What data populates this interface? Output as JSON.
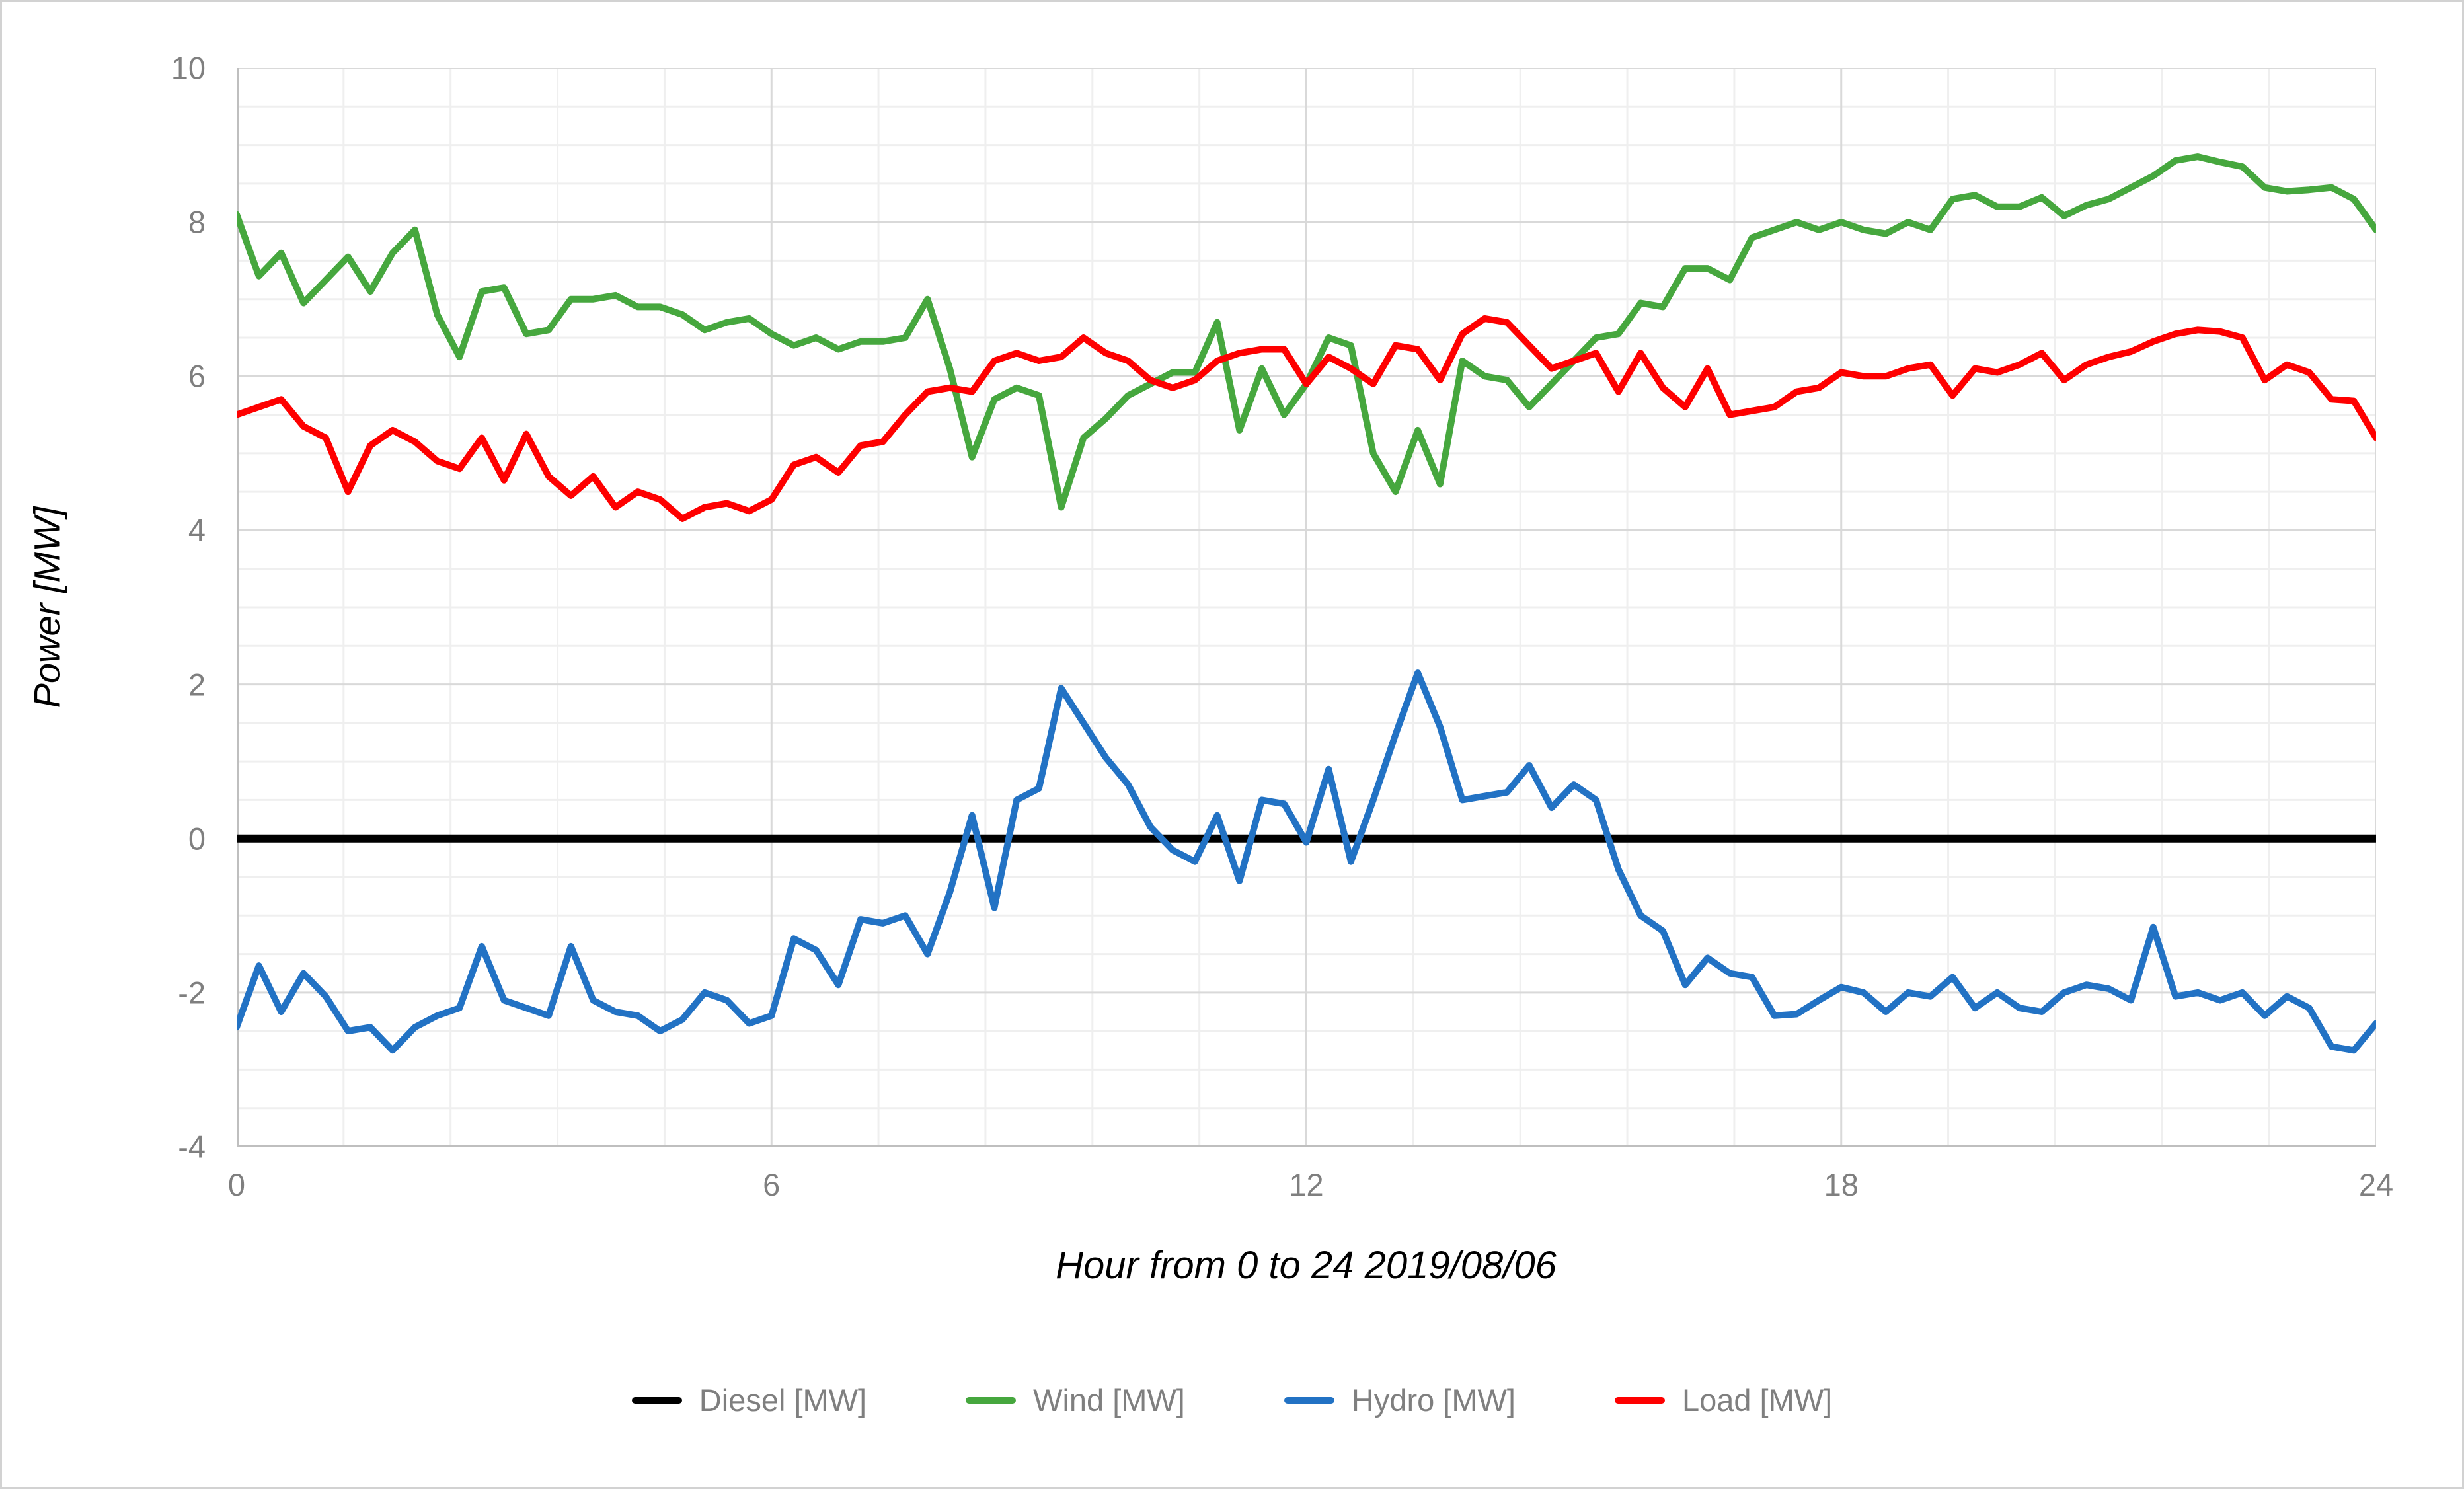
{
  "frame": {
    "background": "#ffffff",
    "border_color": "#d2d2d2"
  },
  "colors": {
    "tick_text": "#7f7f7f",
    "axis_line": "#bfbfbf",
    "grid_major": "#d9d9d9",
    "grid_minor": "#efefef",
    "title_text": "#000000"
  },
  "chart_data": {
    "type": "line",
    "title": "",
    "xlabel": "Hour from 0 to 24 2019/08/06",
    "ylabel": "Power [MW]",
    "xlim": [
      0,
      24
    ],
    "ylim": [
      -4,
      10
    ],
    "x_ticks": [
      0,
      6,
      12,
      18,
      24
    ],
    "y_ticks": [
      10,
      8,
      6,
      4,
      2,
      0,
      -2,
      -4
    ],
    "x_major_step": 6,
    "x_minor_step": 1.2,
    "y_major_step": 2,
    "y_minor_step": 0.5,
    "grid": true,
    "legend_position": "bottom",
    "x_start": 0,
    "x_step": 0.25,
    "series": [
      {
        "name": "Diesel [MW]",
        "color": "#000000",
        "width": 12,
        "values": [
          0,
          0,
          0,
          0,
          0,
          0,
          0,
          0,
          0,
          0,
          0,
          0,
          0,
          0,
          0,
          0,
          0,
          0,
          0,
          0,
          0,
          0,
          0,
          0,
          0,
          0,
          0,
          0,
          0,
          0,
          0,
          0,
          0,
          0,
          0,
          0,
          0,
          0,
          0,
          0,
          0,
          0,
          0,
          0,
          0,
          0,
          0,
          0,
          0,
          0,
          0,
          0,
          0,
          0,
          0,
          0,
          0,
          0,
          0,
          0,
          0,
          0,
          0,
          0,
          0,
          0,
          0,
          0,
          0,
          0,
          0,
          0,
          0,
          0,
          0,
          0,
          0,
          0,
          0,
          0,
          0,
          0,
          0,
          0,
          0,
          0,
          0,
          0,
          0,
          0,
          0,
          0,
          0,
          0,
          0,
          0,
          0
        ]
      },
      {
        "name": "Wind [MW]",
        "color": "#46a73e",
        "width": 10,
        "values": [
          8.1,
          7.3,
          7.6,
          6.95,
          7.25,
          7.55,
          7.1,
          7.6,
          7.9,
          6.8,
          6.25,
          7.1,
          7.15,
          6.55,
          6.6,
          7.0,
          7.0,
          7.05,
          6.9,
          6.9,
          6.8,
          6.6,
          6.7,
          6.75,
          6.55,
          6.4,
          6.5,
          6.35,
          6.45,
          6.45,
          6.5,
          7.0,
          6.1,
          4.95,
          5.7,
          5.85,
          5.75,
          4.3,
          5.2,
          5.45,
          5.75,
          5.9,
          6.05,
          6.05,
          6.7,
          5.3,
          6.1,
          5.5,
          5.9,
          6.5,
          6.4,
          5.0,
          4.5,
          5.3,
          4.6,
          6.2,
          6.0,
          5.95,
          5.6,
          5.9,
          6.2,
          6.5,
          6.55,
          6.95,
          6.9,
          7.4,
          7.4,
          7.25,
          7.8,
          7.9,
          8.0,
          7.9,
          8.0,
          7.9,
          7.85,
          8.0,
          7.9,
          8.3,
          8.35,
          8.2,
          8.2,
          8.32,
          8.08,
          8.22,
          8.3,
          8.45,
          8.6,
          8.8,
          8.85,
          8.78,
          8.72,
          8.45,
          8.4,
          8.42,
          8.45,
          8.3,
          7.9
        ]
      },
      {
        "name": "Hydro [MW]",
        "color": "#2272c4",
        "width": 10,
        "values": [
          -2.45,
          -1.65,
          -2.25,
          -1.75,
          -2.05,
          -2.5,
          -2.45,
          -2.75,
          -2.45,
          -2.3,
          -2.2,
          -1.4,
          -2.1,
          -2.2,
          -2.3,
          -1.4,
          -2.1,
          -2.25,
          -2.3,
          -2.5,
          -2.35,
          -2.0,
          -2.1,
          -2.4,
          -2.3,
          -1.3,
          -1.45,
          -1.9,
          -1.05,
          -1.1,
          -1.0,
          -1.5,
          -0.7,
          0.3,
          -0.9,
          0.5,
          0.65,
          1.95,
          1.5,
          1.05,
          0.7,
          0.15,
          -0.15,
          -0.3,
          0.3,
          -0.55,
          0.5,
          0.45,
          -0.05,
          0.9,
          -0.3,
          0.5,
          1.35,
          2.15,
          1.45,
          0.5,
          0.55,
          0.6,
          0.95,
          0.4,
          0.7,
          0.5,
          -0.4,
          -1.0,
          -1.2,
          -1.9,
          -1.55,
          -1.75,
          -1.8,
          -2.3,
          -2.28,
          -2.1,
          -1.93,
          -2.0,
          -2.25,
          -2.0,
          -2.05,
          -1.8,
          -2.2,
          -2.0,
          -2.2,
          -2.25,
          -2.0,
          -1.9,
          -1.95,
          -2.1,
          -1.15,
          -2.05,
          -2.0,
          -2.1,
          -2.0,
          -2.3,
          -2.05,
          -2.2,
          -2.7,
          -2.75,
          -2.4
        ]
      },
      {
        "name": "Load [MW]",
        "color": "#fe0000",
        "width": 10,
        "values": [
          5.5,
          5.6,
          5.7,
          5.35,
          5.2,
          4.5,
          5.1,
          5.3,
          5.15,
          4.9,
          4.8,
          5.2,
          4.65,
          5.25,
          4.7,
          4.45,
          4.7,
          4.3,
          4.5,
          4.4,
          4.15,
          4.3,
          4.35,
          4.25,
          4.4,
          4.85,
          4.95,
          4.75,
          5.1,
          5.15,
          5.5,
          5.8,
          5.85,
          5.8,
          6.2,
          6.3,
          6.2,
          6.25,
          6.5,
          6.3,
          6.2,
          5.95,
          5.85,
          5.95,
          6.2,
          6.3,
          6.35,
          6.35,
          5.9,
          6.25,
          6.1,
          5.9,
          6.4,
          6.35,
          5.95,
          6.55,
          6.75,
          6.7,
          6.4,
          6.1,
          6.2,
          6.3,
          5.8,
          6.3,
          5.85,
          5.6,
          6.1,
          5.5,
          5.55,
          5.6,
          5.8,
          5.85,
          6.05,
          6.0,
          6.0,
          6.1,
          6.15,
          5.75,
          6.1,
          6.05,
          6.15,
          6.3,
          5.95,
          6.15,
          6.25,
          6.32,
          6.45,
          6.55,
          6.6,
          6.58,
          6.5,
          5.95,
          6.15,
          6.05,
          5.7,
          5.68,
          5.2
        ]
      }
    ]
  },
  "axis_tick_labels": {
    "y": [
      "10",
      "8",
      "6",
      "4",
      "2",
      "0",
      "-2",
      "-4"
    ],
    "x": [
      "0",
      "6",
      "12",
      "18",
      "24"
    ]
  }
}
